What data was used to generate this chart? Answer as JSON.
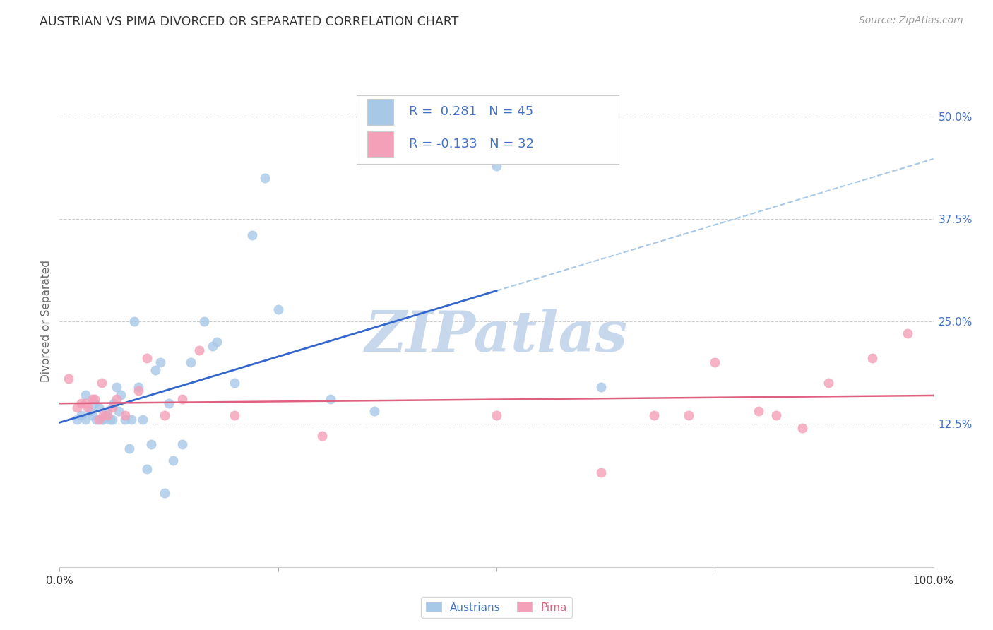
{
  "title": "AUSTRIAN VS PIMA DIVORCED OR SEPARATED CORRELATION CHART",
  "source": "Source: ZipAtlas.com",
  "ylabel": "Divorced or Separated",
  "xlim": [
    0.0,
    1.0
  ],
  "ylim": [
    -0.05,
    0.55
  ],
  "ytick_values": [
    0.125,
    0.25,
    0.375,
    0.5
  ],
  "ytick_labels": [
    "12.5%",
    "25.0%",
    "37.5%",
    "50.0%"
  ],
  "xtick_values": [
    0.0,
    0.25,
    0.5,
    0.75,
    1.0
  ],
  "xtick_labels": [
    "0.0%",
    "",
    "",
    "",
    "100.0%"
  ],
  "blue_color": "#a8c8e8",
  "pink_color": "#f4a0b8",
  "blue_line_color": "#3366cc",
  "pink_line_color": "#e06080",
  "dashed_line_color": "#a8c8e8",
  "grid_color": "#cccccc",
  "watermark_color": "#c8d8ec",
  "background_color": "#ffffff",
  "right_tick_color": "#4472c4",
  "legend_text_color": "#4472c4",
  "legend_border_color": "#cccccc",
  "title_color": "#333333",
  "source_color": "#999999",
  "ylabel_color": "#666666",
  "austrians_x": [
    0.02,
    0.025,
    0.03,
    0.03,
    0.035,
    0.038,
    0.04,
    0.042,
    0.045,
    0.048,
    0.05,
    0.052,
    0.055,
    0.058,
    0.06,
    0.062,
    0.065,
    0.068,
    0.07,
    0.075,
    0.08,
    0.082,
    0.085,
    0.09,
    0.095,
    0.1,
    0.105,
    0.11,
    0.115,
    0.12,
    0.125,
    0.13,
    0.14,
    0.15,
    0.165,
    0.175,
    0.18,
    0.2,
    0.22,
    0.235,
    0.25,
    0.31,
    0.36,
    0.5,
    0.62
  ],
  "austrians_y": [
    0.13,
    0.135,
    0.13,
    0.16,
    0.14,
    0.135,
    0.15,
    0.13,
    0.145,
    0.13,
    0.13,
    0.135,
    0.14,
    0.13,
    0.13,
    0.15,
    0.17,
    0.14,
    0.16,
    0.13,
    0.095,
    0.13,
    0.25,
    0.17,
    0.13,
    0.07,
    0.1,
    0.19,
    0.2,
    0.04,
    0.15,
    0.08,
    0.1,
    0.2,
    0.25,
    0.22,
    0.225,
    0.175,
    0.355,
    0.425,
    0.265,
    0.155,
    0.14,
    0.44,
    0.17
  ],
  "pima_x": [
    0.01,
    0.02,
    0.025,
    0.03,
    0.032,
    0.038,
    0.04,
    0.045,
    0.048,
    0.05,
    0.055,
    0.06,
    0.065,
    0.075,
    0.09,
    0.1,
    0.12,
    0.14,
    0.16,
    0.2,
    0.3,
    0.5,
    0.62,
    0.68,
    0.72,
    0.75,
    0.8,
    0.82,
    0.85,
    0.88,
    0.93,
    0.97
  ],
  "pima_y": [
    0.18,
    0.145,
    0.15,
    0.15,
    0.145,
    0.155,
    0.155,
    0.13,
    0.175,
    0.135,
    0.135,
    0.145,
    0.155,
    0.135,
    0.165,
    0.205,
    0.135,
    0.155,
    0.215,
    0.135,
    0.11,
    0.135,
    0.065,
    0.135,
    0.135,
    0.2,
    0.14,
    0.135,
    0.12,
    0.175,
    0.205,
    0.235
  ]
}
